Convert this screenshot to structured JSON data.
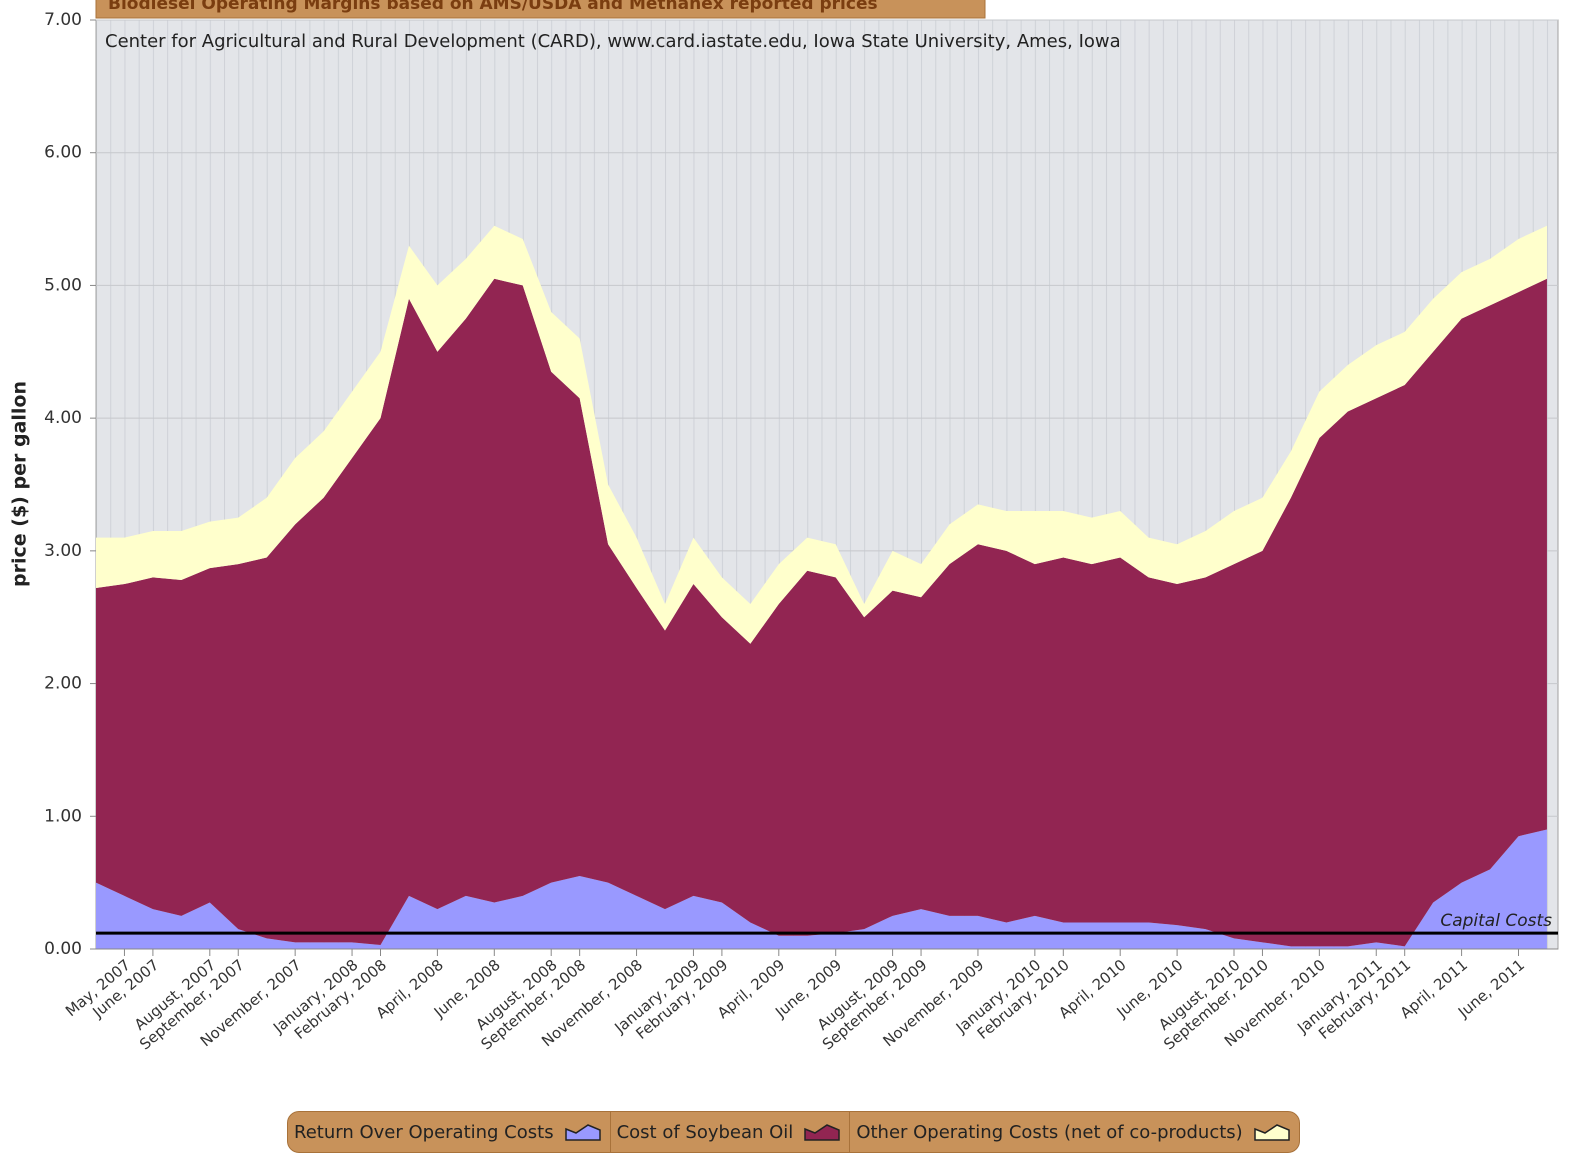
{
  "chart_data": {
    "type": "area",
    "stacked": true,
    "title": "Biodiesel Operating Margins based on AMS/USDA and Methanex reported prices",
    "subtitle": "Center for Agricultural and Rural Development (CARD), www.card.iastate.edu, Iowa State University, Ames, Iowa",
    "y_label": "price ($) per gallon",
    "categories": [
      null,
      "May, 2007",
      "June, 2007",
      null,
      "August, 2007",
      "September, 2007",
      null,
      "November, 2007",
      null,
      "January, 2008",
      "February, 2008",
      null,
      "April, 2008",
      null,
      "June, 2008",
      null,
      "August, 2008",
      "September, 2008",
      null,
      "November, 2008",
      null,
      "January, 2009",
      "February, 2009",
      null,
      "April, 2009",
      null,
      "June, 2009",
      null,
      "August, 2009",
      "September, 2009",
      null,
      "November, 2009",
      null,
      "January, 2010",
      "February, 2010",
      null,
      "April, 2010",
      null,
      "June, 2010",
      null,
      "August, 2010",
      "September, 2010",
      null,
      "November, 2010",
      null,
      "January, 2011",
      "February, 2011",
      null,
      "April, 2011",
      null,
      "June, 2011",
      null
    ],
    "series": [
      {
        "name": "Return Over Operating Costs",
        "color": "#9999ff",
        "values": [
          0.5,
          0.4,
          0.3,
          0.25,
          0.35,
          0.15,
          0.08,
          0.05,
          0.05,
          0.05,
          0.03,
          0.4,
          0.3,
          0.4,
          0.35,
          0.4,
          0.5,
          0.55,
          0.5,
          0.4,
          0.3,
          0.4,
          0.35,
          0.2,
          0.1,
          0.1,
          0.12,
          0.15,
          0.25,
          0.3,
          0.25,
          0.25,
          0.2,
          0.25,
          0.2,
          0.2,
          0.2,
          0.2,
          0.18,
          0.15,
          0.08,
          0.05,
          0.02,
          0.02,
          0.02,
          0.05,
          0.02,
          0.35,
          0.5,
          0.6,
          0.85,
          0.9
        ]
      },
      {
        "name": "Cost of Soybean Oil",
        "color": "#922552",
        "values": [
          2.22,
          2.35,
          2.5,
          2.53,
          2.52,
          2.75,
          2.87,
          3.15,
          3.35,
          3.65,
          3.97,
          4.5,
          4.2,
          4.35,
          4.7,
          4.6,
          3.85,
          3.6,
          2.55,
          2.32,
          2.1,
          2.35,
          2.15,
          2.1,
          2.5,
          2.75,
          2.68,
          2.35,
          2.45,
          2.35,
          2.65,
          2.8,
          2.8,
          2.65,
          2.75,
          2.7,
          2.75,
          2.6,
          2.57,
          2.65,
          2.82,
          2.95,
          3.38,
          3.83,
          4.03,
          4.1,
          4.23,
          4.15,
          4.25,
          4.25,
          4.1,
          4.15
        ]
      },
      {
        "name": "Other Operating Costs (net of co-products)",
        "color": "#ffffcc",
        "values": [
          0.38,
          0.35,
          0.35,
          0.37,
          0.35,
          0.35,
          0.45,
          0.5,
          0.5,
          0.5,
          0.5,
          0.4,
          0.5,
          0.45,
          0.4,
          0.35,
          0.45,
          0.45,
          0.45,
          0.38,
          0.2,
          0.35,
          0.3,
          0.3,
          0.3,
          0.25,
          0.25,
          0.1,
          0.3,
          0.25,
          0.3,
          0.3,
          0.3,
          0.4,
          0.35,
          0.35,
          0.35,
          0.3,
          0.3,
          0.35,
          0.4,
          0.4,
          0.35,
          0.35,
          0.35,
          0.4,
          0.4,
          0.4,
          0.35,
          0.35,
          0.4,
          0.4
        ]
      }
    ],
    "ylim": [
      0,
      7
    ],
    "yticks": [
      {
        "value": 0,
        "label": "0.00"
      },
      {
        "value": 1,
        "label": "1.00"
      },
      {
        "value": 2,
        "label": "2.00"
      },
      {
        "value": 3,
        "label": "3.00"
      },
      {
        "value": 4,
        "label": "4.00"
      },
      {
        "value": 5,
        "label": "5.00"
      },
      {
        "value": 6,
        "label": "6.00"
      },
      {
        "value": 7,
        "label": "7.00"
      }
    ],
    "grid": true,
    "reference_line": {
      "value": 0.12,
      "label": "Capital Costs",
      "color": "#000000"
    },
    "legend": "bottom"
  }
}
